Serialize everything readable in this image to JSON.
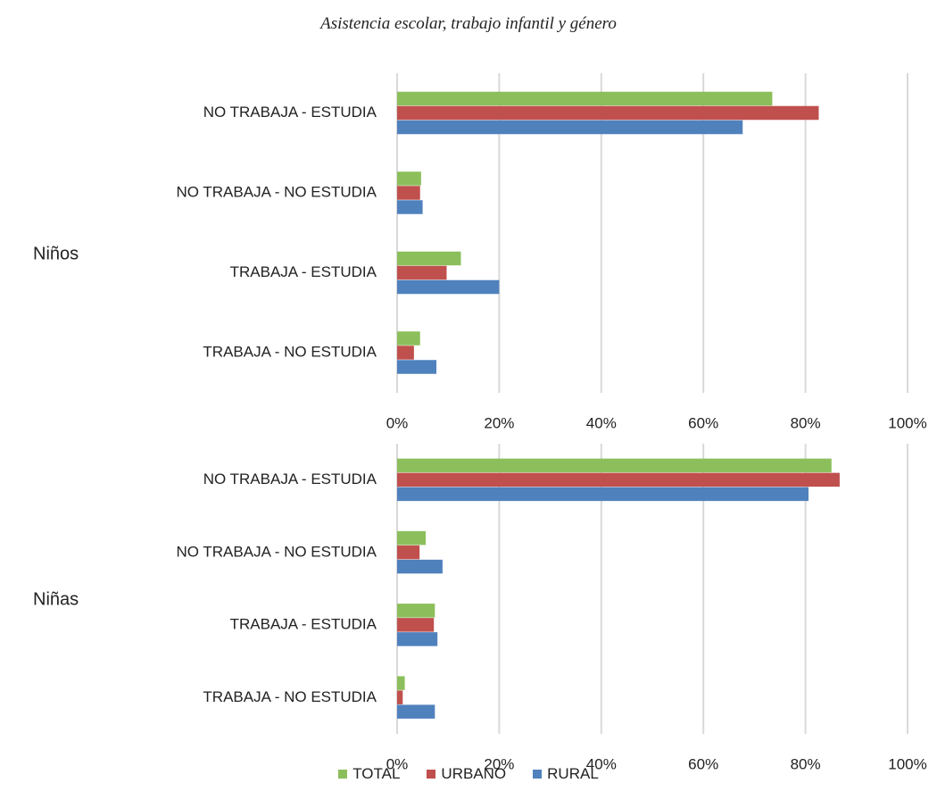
{
  "title": "Asistencia escolar, trabajo infantil y género",
  "chart_data": {
    "type": "bar",
    "orientation": "horizontal",
    "xlim": [
      0,
      1
    ],
    "x_ticks": [
      "0%",
      "20%",
      "40%",
      "60%",
      "80%",
      "100%"
    ],
    "grid": true,
    "legend_position": "bottom",
    "series": [
      {
        "name": "TOTAL",
        "color": "#8cbf5b"
      },
      {
        "name": "URBANO",
        "color": "#c0504d"
      },
      {
        "name": "RURAL",
        "color": "#4f81bd"
      }
    ],
    "panels": [
      {
        "group": "Niños",
        "categories": [
          "NO TRABAJA - ESTUDIA",
          "NO TRABAJA - NO ESTUDIA",
          "TRABAJA - ESTUDIA",
          "TRABAJA - NO ESTUDIA"
        ],
        "values": {
          "TOTAL": [
            0.735,
            0.047,
            0.125,
            0.045
          ],
          "URBANO": [
            0.826,
            0.045,
            0.097,
            0.033
          ],
          "RURAL": [
            0.677,
            0.05,
            0.2,
            0.077
          ]
        }
      },
      {
        "group": "Niñas",
        "categories": [
          "NO TRABAJA - ESTUDIA",
          "NO TRABAJA - NO ESTUDIA",
          "TRABAJA - ESTUDIA",
          "TRABAJA - NO ESTUDIA"
        ],
        "values": {
          "TOTAL": [
            0.851,
            0.056,
            0.074,
            0.015
          ],
          "URBANO": [
            0.867,
            0.044,
            0.072,
            0.011
          ],
          "RURAL": [
            0.806,
            0.089,
            0.079,
            0.074
          ]
        }
      }
    ]
  }
}
